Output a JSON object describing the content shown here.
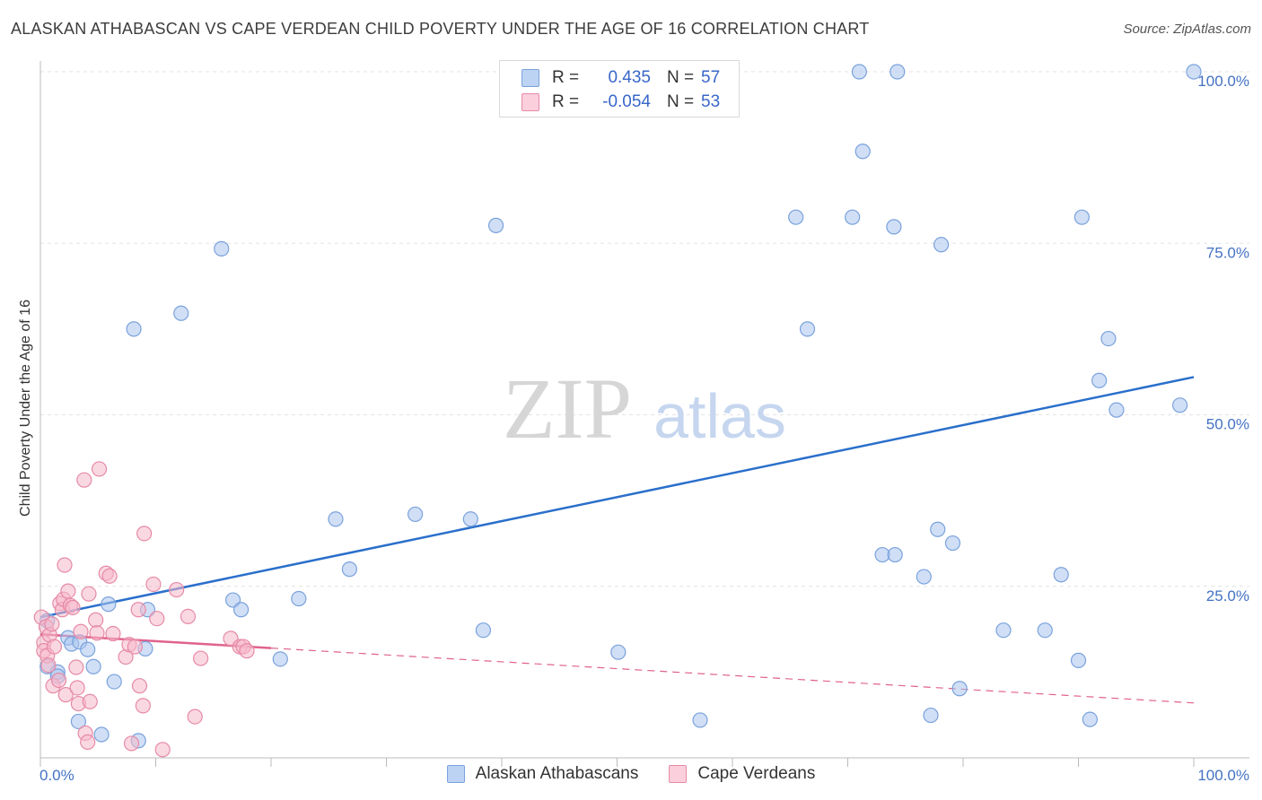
{
  "title": "ALASKAN ATHABASCAN VS CAPE VERDEAN CHILD POVERTY UNDER THE AGE OF 16 CORRELATION CHART",
  "source": "Source: ZipAtlas.com",
  "watermark": {
    "zip": "ZIP",
    "atlas": "atlas"
  },
  "legend": {
    "rows": [
      {
        "r_label": "R =",
        "r_value": "0.435",
        "n_label": "N =",
        "n_value": "57"
      },
      {
        "r_label": "R =",
        "r_value": "-0.054",
        "n_label": "N =",
        "n_value": "53"
      }
    ]
  },
  "bottom_legend": {
    "series1": "Alaskan Athabascans",
    "series2": "Cape Verdeans"
  },
  "colors": {
    "blue_fill": "#a9c4ee",
    "blue_stroke": "#7aa2dc",
    "blue_line": "#2a6fcb",
    "pink_fill": "#f6b8ca",
    "pink_stroke": "#e68aa6",
    "pink_line": "#e0628c",
    "axis_text": "#4472c4"
  },
  "chart_data": {
    "type": "scatter",
    "title": "ALASKAN ATHABASCAN VS CAPE VERDEAN CHILD POVERTY UNDER THE AGE OF 16 CORRELATION CHART",
    "xlabel": "",
    "ylabel": "Child Poverty Under the Age of 16",
    "xlim": [
      0,
      100
    ],
    "ylim": [
      0,
      100
    ],
    "x_tick_labels": [
      "0.0%",
      "100.0%"
    ],
    "y_tick_values": [
      25,
      50,
      75,
      100
    ],
    "y_tick_labels": [
      "25.0%",
      "50.0%",
      "75.0%",
      "100.0%"
    ],
    "series": [
      {
        "name": "Alaskan Athabascans",
        "r": 0.435,
        "n": 57,
        "trend": {
          "x": [
            0,
            100
          ],
          "y": [
            20.5,
            55.5
          ],
          "solid_to": 100
        },
        "points": [
          [
            0.6,
            20
          ],
          [
            0.6,
            13.3
          ],
          [
            1.5,
            12.5
          ],
          [
            1.5,
            11.9
          ],
          [
            2.4,
            17.5
          ],
          [
            2.7,
            16.6
          ],
          [
            3.4,
            16.9
          ],
          [
            3.3,
            5.3
          ],
          [
            4.1,
            15.8
          ],
          [
            4.6,
            13.3
          ],
          [
            5.3,
            3.4
          ],
          [
            5.9,
            22.4
          ],
          [
            6.4,
            11.1
          ],
          [
            8.1,
            62.5
          ],
          [
            8.5,
            2.5
          ],
          [
            9.1,
            15.9
          ],
          [
            9.3,
            21.6
          ],
          [
            12.2,
            64.8
          ],
          [
            15.7,
            74.2
          ],
          [
            16.7,
            23
          ],
          [
            17.4,
            21.6
          ],
          [
            20.8,
            14.4
          ],
          [
            22.4,
            23.2
          ],
          [
            25.6,
            34.8
          ],
          [
            26.8,
            27.5
          ],
          [
            32.5,
            35.5
          ],
          [
            37.3,
            34.8
          ],
          [
            38.4,
            18.6
          ],
          [
            39.5,
            77.6
          ],
          [
            50.1,
            15.4
          ],
          [
            57.2,
            5.5
          ],
          [
            65.5,
            78.8
          ],
          [
            66.5,
            62.5
          ],
          [
            70.4,
            78.8
          ],
          [
            71.0,
            100
          ],
          [
            71.3,
            88.4
          ],
          [
            73.0,
            29.6
          ],
          [
            74.1,
            29.6
          ],
          [
            74.3,
            100
          ],
          [
            74.0,
            77.4
          ],
          [
            76.6,
            26.4
          ],
          [
            77.2,
            6.2
          ],
          [
            77.8,
            33.3
          ],
          [
            78.1,
            74.8
          ],
          [
            79.1,
            31.3
          ],
          [
            79.7,
            10.1
          ],
          [
            83.5,
            18.6
          ],
          [
            87.1,
            18.6
          ],
          [
            88.5,
            26.7
          ],
          [
            90.0,
            14.2
          ],
          [
            90.3,
            78.8
          ],
          [
            91.0,
            5.6
          ],
          [
            91.8,
            55
          ],
          [
            92.6,
            61.1
          ],
          [
            93.3,
            50.7
          ],
          [
            98.8,
            51.4
          ],
          [
            100,
            100
          ]
        ]
      },
      {
        "name": "Cape Verdeans",
        "r": -0.054,
        "n": 53,
        "trend": {
          "x": [
            0,
            100
          ],
          "y": [
            18,
            8
          ],
          "solid_to": 20
        },
        "points": [
          [
            0.1,
            20.5
          ],
          [
            0.3,
            16.8
          ],
          [
            0.3,
            15.6
          ],
          [
            0.5,
            19.1
          ],
          [
            0.6,
            14.9
          ],
          [
            0.7,
            13.5
          ],
          [
            0.8,
            17.9
          ],
          [
            1.0,
            19.5
          ],
          [
            1.1,
            10.5
          ],
          [
            1.2,
            16.2
          ],
          [
            1.6,
            11.3
          ],
          [
            1.7,
            22.5
          ],
          [
            1.9,
            21.6
          ],
          [
            2.0,
            23.1
          ],
          [
            2.1,
            28.1
          ],
          [
            2.2,
            9.2
          ],
          [
            2.4,
            24.3
          ],
          [
            2.6,
            22.2
          ],
          [
            2.8,
            21.9
          ],
          [
            3.1,
            13.2
          ],
          [
            3.2,
            10.2
          ],
          [
            3.3,
            7.9
          ],
          [
            3.5,
            18.4
          ],
          [
            3.8,
            40.5
          ],
          [
            3.9,
            3.6
          ],
          [
            4.1,
            2.3
          ],
          [
            4.2,
            23.9
          ],
          [
            4.3,
            8.2
          ],
          [
            4.8,
            20.1
          ],
          [
            4.9,
            18.2
          ],
          [
            5.1,
            42.1
          ],
          [
            5.7,
            26.9
          ],
          [
            6.0,
            26.5
          ],
          [
            6.3,
            18.1
          ],
          [
            7.4,
            14.7
          ],
          [
            7.7,
            16.5
          ],
          [
            7.9,
            2.1
          ],
          [
            8.2,
            16.2
          ],
          [
            8.5,
            21.6
          ],
          [
            8.6,
            10.5
          ],
          [
            8.9,
            7.6
          ],
          [
            9.0,
            32.7
          ],
          [
            9.8,
            25.3
          ],
          [
            10.1,
            20.3
          ],
          [
            10.6,
            1.2
          ],
          [
            11.8,
            24.5
          ],
          [
            12.8,
            20.6
          ],
          [
            13.4,
            6.0
          ],
          [
            13.9,
            14.5
          ],
          [
            16.5,
            17.4
          ],
          [
            17.3,
            16.2
          ],
          [
            17.6,
            16.2
          ],
          [
            17.9,
            15.6
          ]
        ]
      }
    ]
  }
}
